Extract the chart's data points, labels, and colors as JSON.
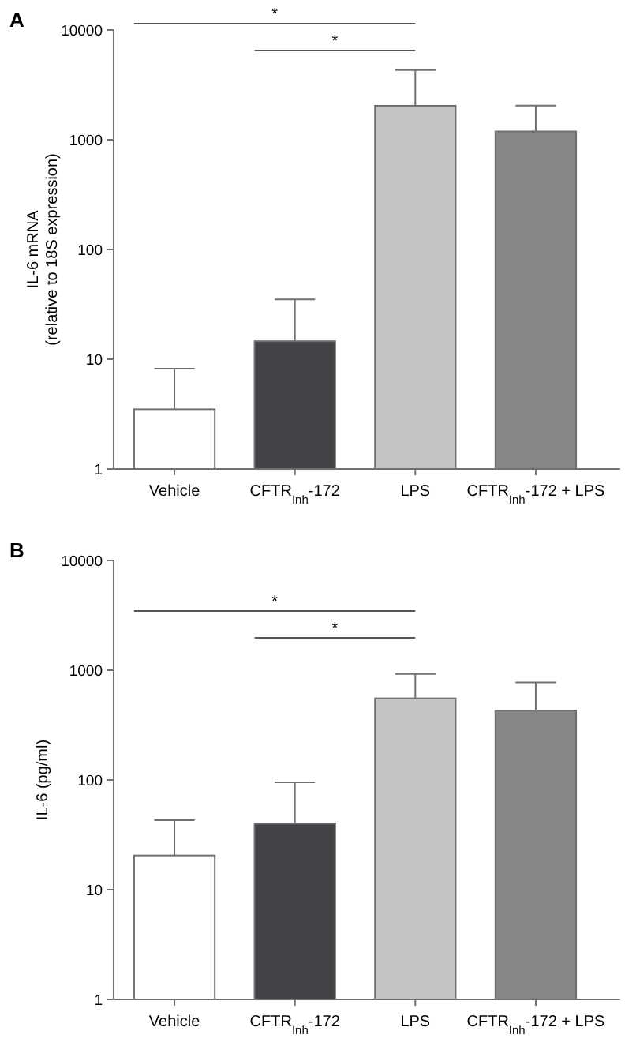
{
  "chart_data": [
    {
      "type": "bar",
      "title": "A",
      "ylabel": "IL-6 mRNA\n(relative to 18S expression)",
      "categories": [
        "Vehicle",
        "CFTR$_{Inh}$-172",
        "LPS",
        "CFTR$_{Inh}$-172 + LPS"
      ],
      "values": [
        3.5,
        14.6,
        2040,
        1190
      ],
      "colors": [
        "#ffffff",
        "#424347",
        "#c3c4c6",
        "#858688"
      ],
      "errors": [
        [
          3.5,
          8.2
        ],
        [
          14.6,
          35
        ],
        [
          2040,
          4310
        ],
        [
          1190,
          2050
        ]
      ],
      "log": true,
      "ylim": [
        1,
        10000
      ],
      "yticks": [
        1,
        10,
        100,
        1000,
        10000
      ],
      "annotations": [
        "*",
        "*"
      ]
    },
    {
      "type": "bar",
      "title": "B",
      "ylabel": "IL-6 (pg/ml)",
      "categories": [
        "Vehicle",
        "CFTR$_{Inh}$-172",
        "LPS",
        "CFTR$_{Inh}$-172 + LPS"
      ],
      "values": [
        20.5,
        40,
        554,
        429
      ],
      "colors": [
        "#ffffff",
        "#424347",
        "#c3c4c6",
        "#858688"
      ],
      "errors": [
        [
          20.5,
          43
        ],
        [
          40,
          95
        ],
        [
          554,
          925
        ],
        [
          429,
          774
        ]
      ],
      "log": true,
      "ylim": [
        1,
        10000
      ],
      "yticks": [
        1,
        10,
        100,
        1000,
        10000
      ],
      "annotations": [
        "*",
        "*"
      ]
    }
  ]
}
